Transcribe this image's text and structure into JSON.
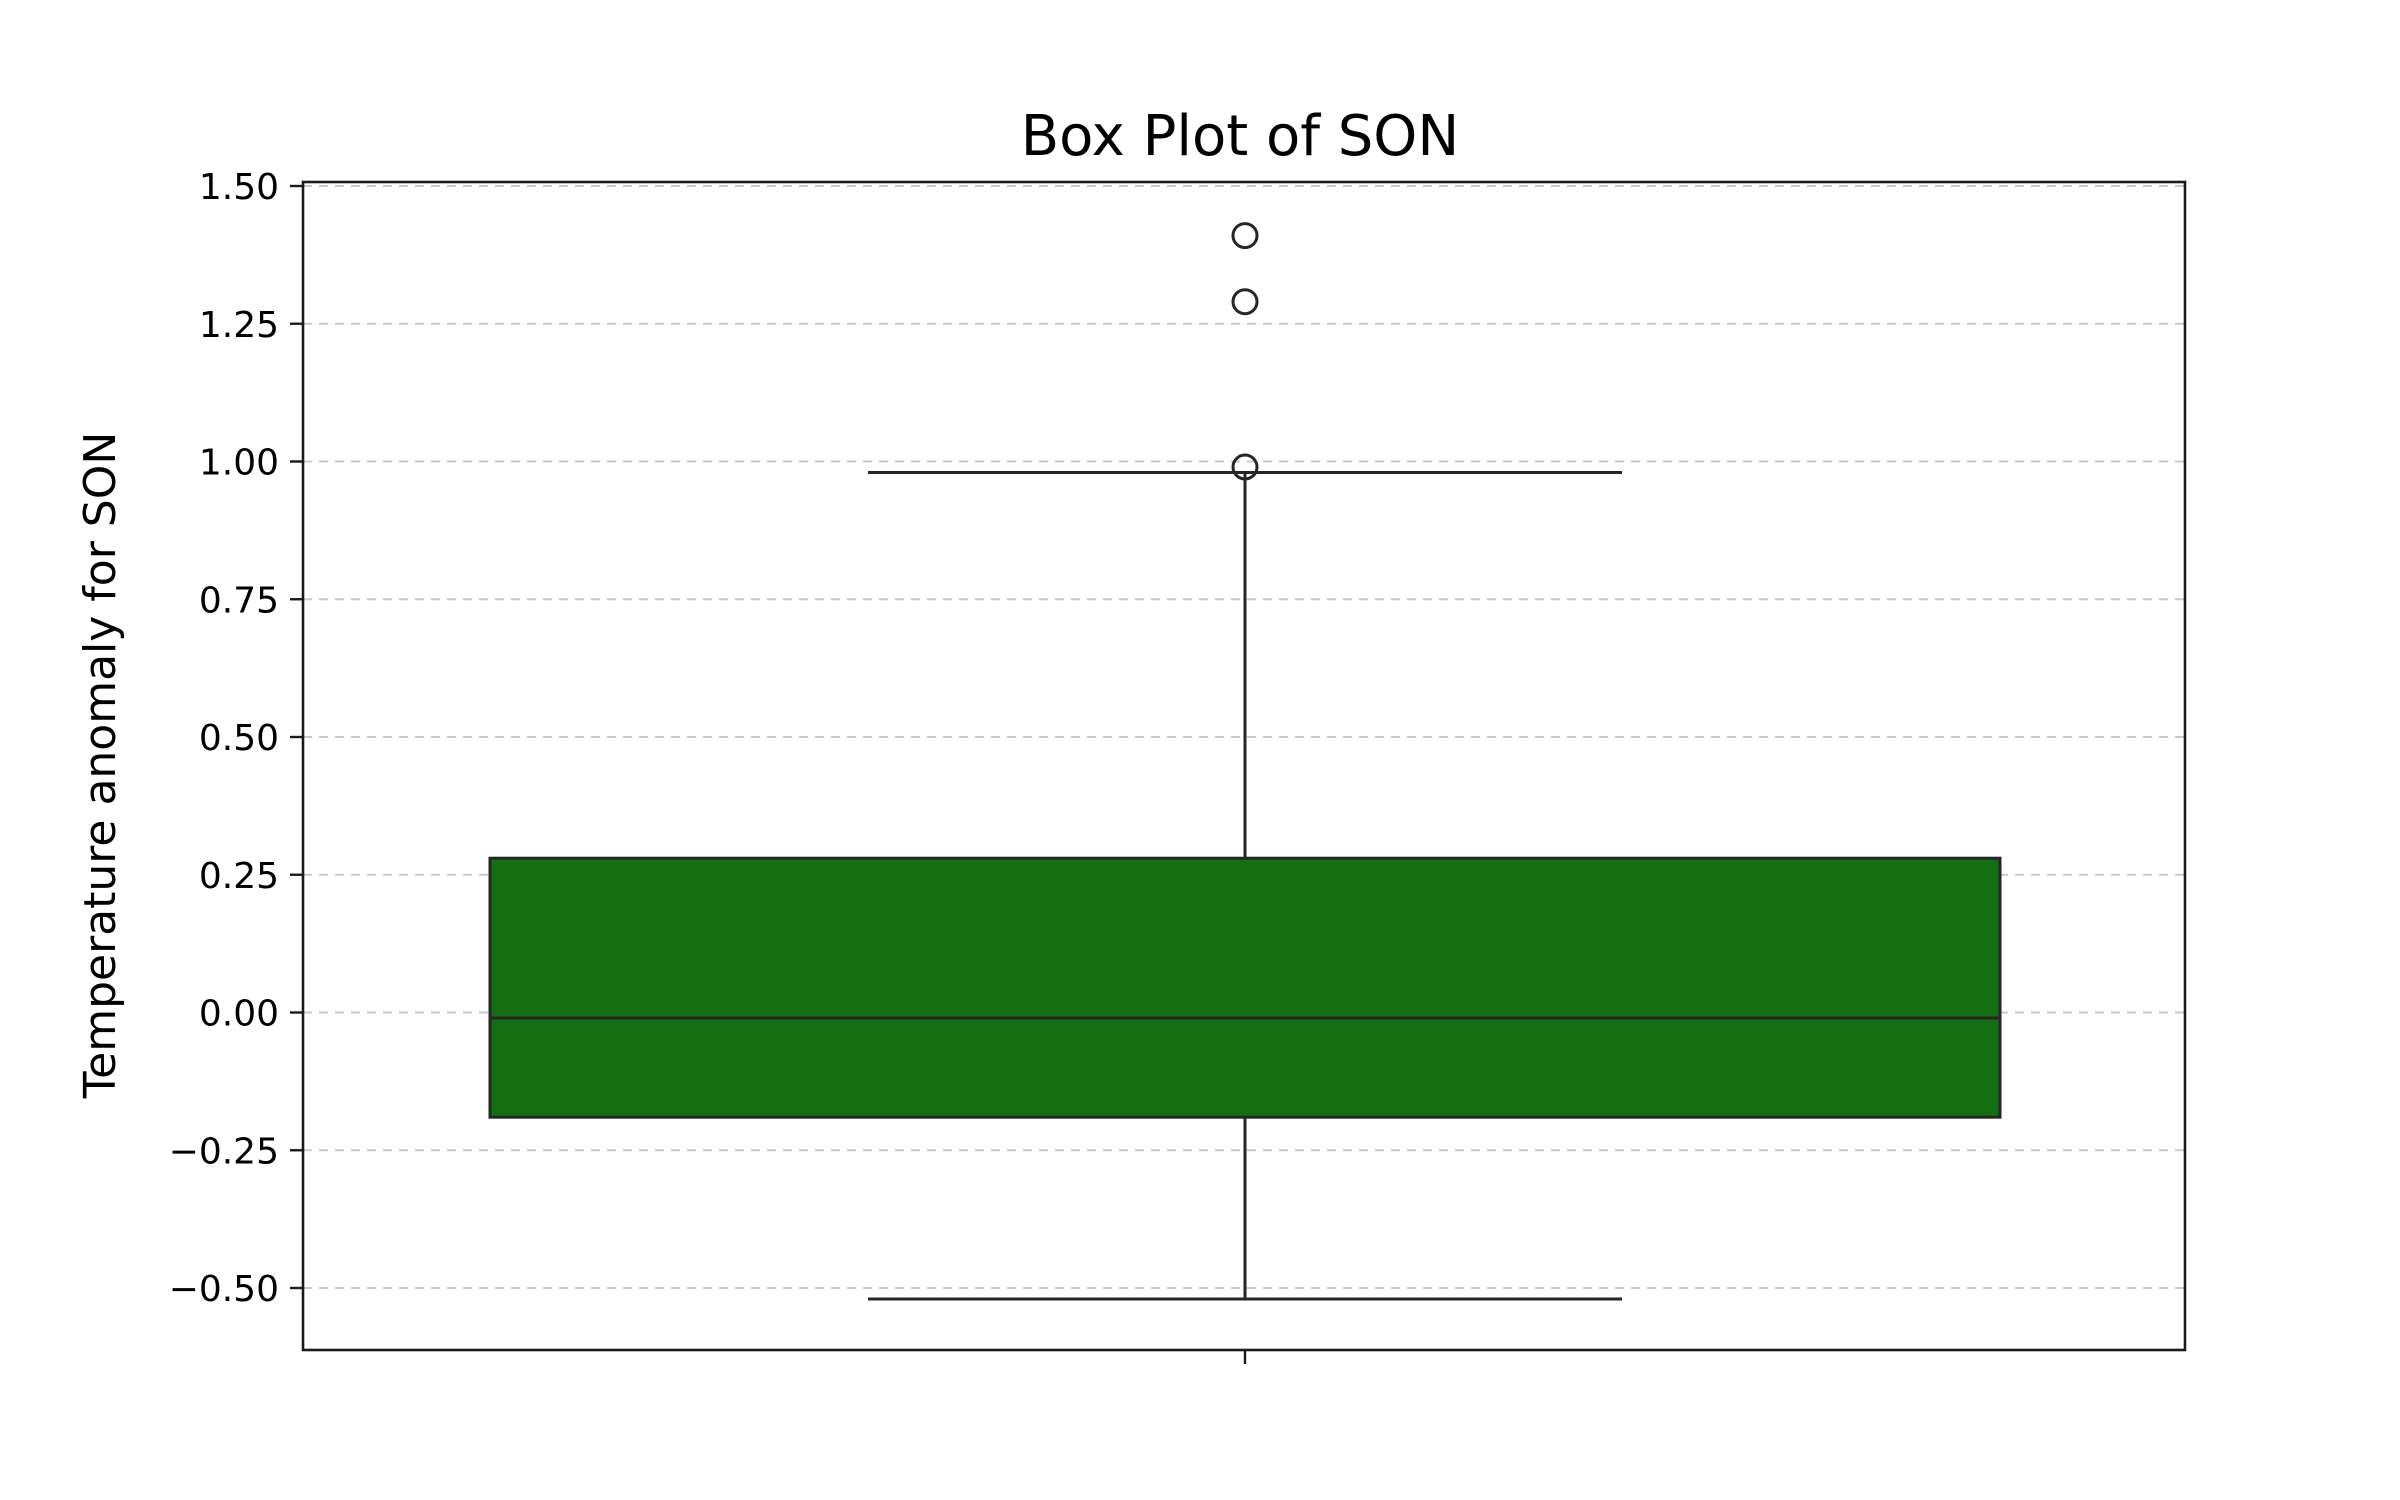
{
  "chart_data": {
    "type": "box",
    "title": "Box Plot of SON",
    "xlabel": "",
    "ylabel": "Temperature anomaly for SON",
    "ylim": [
      -0.6,
      1.51
    ],
    "yticks": [
      -0.5,
      -0.25,
      0.0,
      0.25,
      0.5,
      0.75,
      1.0,
      1.25,
      1.5
    ],
    "ytick_labels": [
      "−0.50",
      "−0.25",
      "0.00",
      "0.25",
      "0.50",
      "0.75",
      "1.00",
      "1.25",
      "1.50"
    ],
    "grid": "y-dashed",
    "box_color": "#127012",
    "box": {
      "q1": -0.19,
      "median": -0.01,
      "q3": 0.28,
      "whisker_low": -0.52,
      "whisker_high": 0.98
    },
    "outliers": [
      0.99,
      1.29,
      1.41
    ]
  }
}
